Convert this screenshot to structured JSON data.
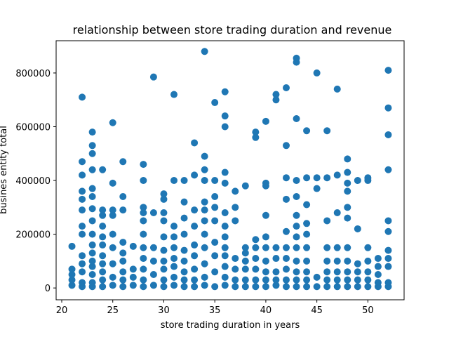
{
  "chart_data": {
    "type": "scatter",
    "title": "relationship between store trading duration and revenue",
    "xlabel": "store trading duration in years",
    "ylabel": "busines entity total",
    "xlim": [
      19.45,
      53.55
    ],
    "ylim": [
      -44000,
      920000
    ],
    "xticks": [
      20,
      25,
      30,
      35,
      40,
      45,
      50
    ],
    "yticks": [
      0,
      200000,
      400000,
      600000,
      800000
    ],
    "grid": false,
    "marker_color": "#1f77b4",
    "points": [
      [
        21,
        10000
      ],
      [
        21,
        30000
      ],
      [
        21,
        50000
      ],
      [
        21,
        70000
      ],
      [
        21,
        155000
      ],
      [
        22,
        5000
      ],
      [
        22,
        20000
      ],
      [
        22,
        60000
      ],
      [
        22,
        90000
      ],
      [
        22,
        120000
      ],
      [
        22,
        200000
      ],
      [
        22,
        230000
      ],
      [
        22,
        290000
      ],
      [
        22,
        330000
      ],
      [
        22,
        360000
      ],
      [
        22,
        420000
      ],
      [
        22,
        470000
      ],
      [
        22,
        710000
      ],
      [
        23,
        5000
      ],
      [
        23,
        20000
      ],
      [
        23,
        50000
      ],
      [
        23,
        80000
      ],
      [
        23,
        100000
      ],
      [
        23,
        130000
      ],
      [
        23,
        160000
      ],
      [
        23,
        200000
      ],
      [
        23,
        250000
      ],
      [
        23,
        295000
      ],
      [
        23,
        340000
      ],
      [
        23,
        370000
      ],
      [
        23,
        440000
      ],
      [
        23,
        500000
      ],
      [
        23,
        530000
      ],
      [
        23,
        580000
      ],
      [
        24,
        5000
      ],
      [
        24,
        30000
      ],
      [
        24,
        60000
      ],
      [
        24,
        90000
      ],
      [
        24,
        120000
      ],
      [
        24,
        160000
      ],
      [
        24,
        190000
      ],
      [
        24,
        230000
      ],
      [
        24,
        270000
      ],
      [
        24,
        290000
      ],
      [
        24,
        440000
      ],
      [
        25,
        10000
      ],
      [
        25,
        40000
      ],
      [
        25,
        90000
      ],
      [
        25,
        150000
      ],
      [
        25,
        200000
      ],
      [
        25,
        270000
      ],
      [
        25,
        290000
      ],
      [
        25,
        390000
      ],
      [
        25,
        615000
      ],
      [
        26,
        5000
      ],
      [
        26,
        30000
      ],
      [
        26,
        60000
      ],
      [
        26,
        100000
      ],
      [
        26,
        130000
      ],
      [
        26,
        170000
      ],
      [
        26,
        290000
      ],
      [
        26,
        340000
      ],
      [
        26,
        470000
      ],
      [
        27,
        10000
      ],
      [
        27,
        40000
      ],
      [
        27,
        70000
      ],
      [
        27,
        155000
      ],
      [
        28,
        5000
      ],
      [
        28,
        30000
      ],
      [
        28,
        70000
      ],
      [
        28,
        110000
      ],
      [
        28,
        150000
      ],
      [
        28,
        200000
      ],
      [
        28,
        250000
      ],
      [
        28,
        280000
      ],
      [
        28,
        300000
      ],
      [
        28,
        400000
      ],
      [
        28,
        460000
      ],
      [
        29,
        10000
      ],
      [
        29,
        50000
      ],
      [
        29,
        100000
      ],
      [
        29,
        150000
      ],
      [
        29,
        280000
      ],
      [
        29,
        785000
      ],
      [
        30,
        5000
      ],
      [
        30,
        30000
      ],
      [
        30,
        70000
      ],
      [
        30,
        100000
      ],
      [
        30,
        140000
      ],
      [
        30,
        190000
      ],
      [
        30,
        250000
      ],
      [
        30,
        280000
      ],
      [
        30,
        330000
      ],
      [
        30,
        350000
      ],
      [
        31,
        10000
      ],
      [
        31,
        40000
      ],
      [
        31,
        80000
      ],
      [
        31,
        110000
      ],
      [
        31,
        150000
      ],
      [
        31,
        190000
      ],
      [
        31,
        230000
      ],
      [
        31,
        400000
      ],
      [
        31,
        720000
      ],
      [
        32,
        5000
      ],
      [
        32,
        30000
      ],
      [
        32,
        60000
      ],
      [
        32,
        100000
      ],
      [
        32,
        140000
      ],
      [
        32,
        200000
      ],
      [
        32,
        260000
      ],
      [
        32,
        320000
      ],
      [
        32,
        400000
      ],
      [
        33,
        5000
      ],
      [
        33,
        30000
      ],
      [
        33,
        70000
      ],
      [
        33,
        120000
      ],
      [
        33,
        160000
      ],
      [
        33,
        230000
      ],
      [
        33,
        290000
      ],
      [
        33,
        420000
      ],
      [
        33,
        540000
      ],
      [
        34,
        10000
      ],
      [
        34,
        40000
      ],
      [
        34,
        90000
      ],
      [
        34,
        150000
      ],
      [
        34,
        200000
      ],
      [
        34,
        250000
      ],
      [
        34,
        290000
      ],
      [
        34,
        320000
      ],
      [
        34,
        400000
      ],
      [
        34,
        440000
      ],
      [
        34,
        490000
      ],
      [
        34,
        880000
      ],
      [
        35,
        5000
      ],
      [
        35,
        60000
      ],
      [
        35,
        120000
      ],
      [
        35,
        170000
      ],
      [
        35,
        250000
      ],
      [
        35,
        300000
      ],
      [
        35,
        340000
      ],
      [
        35,
        400000
      ],
      [
        35,
        690000
      ],
      [
        36,
        10000
      ],
      [
        36,
        40000
      ],
      [
        36,
        80000
      ],
      [
        36,
        120000
      ],
      [
        36,
        150000
      ],
      [
        36,
        190000
      ],
      [
        36,
        230000
      ],
      [
        36,
        280000
      ],
      [
        36,
        390000
      ],
      [
        36,
        430000
      ],
      [
        36,
        600000
      ],
      [
        36,
        640000
      ],
      [
        36,
        730000
      ],
      [
        37,
        5000
      ],
      [
        37,
        30000
      ],
      [
        37,
        70000
      ],
      [
        37,
        110000
      ],
      [
        37,
        250000
      ],
      [
        37,
        300000
      ],
      [
        37,
        360000
      ],
      [
        38,
        5000
      ],
      [
        38,
        30000
      ],
      [
        38,
        70000
      ],
      [
        38,
        100000
      ],
      [
        38,
        130000
      ],
      [
        38,
        150000
      ],
      [
        38,
        380000
      ],
      [
        39,
        5000
      ],
      [
        39,
        30000
      ],
      [
        39,
        70000
      ],
      [
        39,
        110000
      ],
      [
        39,
        150000
      ],
      [
        39,
        180000
      ],
      [
        39,
        560000
      ],
      [
        39,
        580000
      ],
      [
        40,
        5000
      ],
      [
        40,
        30000
      ],
      [
        40,
        60000
      ],
      [
        40,
        100000
      ],
      [
        40,
        150000
      ],
      [
        40,
        190000
      ],
      [
        40,
        270000
      ],
      [
        40,
        380000
      ],
      [
        40,
        390000
      ],
      [
        40,
        620000
      ],
      [
        41,
        10000
      ],
      [
        41,
        30000
      ],
      [
        41,
        60000
      ],
      [
        41,
        110000
      ],
      [
        41,
        150000
      ],
      [
        41,
        700000
      ],
      [
        41,
        720000
      ],
      [
        42,
        5000
      ],
      [
        42,
        30000
      ],
      [
        42,
        70000
      ],
      [
        42,
        110000
      ],
      [
        42,
        150000
      ],
      [
        42,
        210000
      ],
      [
        42,
        330000
      ],
      [
        42,
        410000
      ],
      [
        42,
        530000
      ],
      [
        42,
        745000
      ],
      [
        43,
        5000
      ],
      [
        43,
        30000
      ],
      [
        43,
        60000
      ],
      [
        43,
        100000
      ],
      [
        43,
        150000
      ],
      [
        43,
        190000
      ],
      [
        43,
        230000
      ],
      [
        43,
        270000
      ],
      [
        43,
        340000
      ],
      [
        43,
        400000
      ],
      [
        43,
        630000
      ],
      [
        43,
        840000
      ],
      [
        43,
        855000
      ],
      [
        44,
        5000
      ],
      [
        44,
        30000
      ],
      [
        44,
        60000
      ],
      [
        44,
        100000
      ],
      [
        44,
        150000
      ],
      [
        44,
        200000
      ],
      [
        44,
        240000
      ],
      [
        44,
        310000
      ],
      [
        44,
        410000
      ],
      [
        44,
        585000
      ],
      [
        45,
        5000
      ],
      [
        45,
        40000
      ],
      [
        45,
        370000
      ],
      [
        45,
        410000
      ],
      [
        45,
        800000
      ],
      [
        46,
        5000
      ],
      [
        46,
        30000
      ],
      [
        46,
        60000
      ],
      [
        46,
        100000
      ],
      [
        46,
        150000
      ],
      [
        46,
        250000
      ],
      [
        46,
        410000
      ],
      [
        46,
        585000
      ],
      [
        47,
        5000
      ],
      [
        47,
        30000
      ],
      [
        47,
        60000
      ],
      [
        47,
        100000
      ],
      [
        47,
        150000
      ],
      [
        47,
        280000
      ],
      [
        47,
        420000
      ],
      [
        47,
        740000
      ],
      [
        48,
        5000
      ],
      [
        48,
        30000
      ],
      [
        48,
        60000
      ],
      [
        48,
        100000
      ],
      [
        48,
        150000
      ],
      [
        48,
        260000
      ],
      [
        48,
        300000
      ],
      [
        48,
        360000
      ],
      [
        48,
        390000
      ],
      [
        48,
        430000
      ],
      [
        48,
        480000
      ],
      [
        49,
        5000
      ],
      [
        49,
        30000
      ],
      [
        49,
        60000
      ],
      [
        49,
        90000
      ],
      [
        49,
        220000
      ],
      [
        49,
        400000
      ],
      [
        50,
        5000
      ],
      [
        50,
        30000
      ],
      [
        50,
        60000
      ],
      [
        50,
        100000
      ],
      [
        50,
        150000
      ],
      [
        50,
        400000
      ],
      [
        50,
        410000
      ],
      [
        51,
        5000
      ],
      [
        51,
        20000
      ],
      [
        51,
        50000
      ],
      [
        51,
        80000
      ],
      [
        51,
        110000
      ],
      [
        52,
        5000
      ],
      [
        52,
        20000
      ],
      [
        52,
        80000
      ],
      [
        52,
        110000
      ],
      [
        52,
        140000
      ],
      [
        52,
        210000
      ],
      [
        52,
        250000
      ],
      [
        52,
        440000
      ],
      [
        52,
        570000
      ],
      [
        52,
        670000
      ],
      [
        52,
        810000
      ]
    ]
  }
}
